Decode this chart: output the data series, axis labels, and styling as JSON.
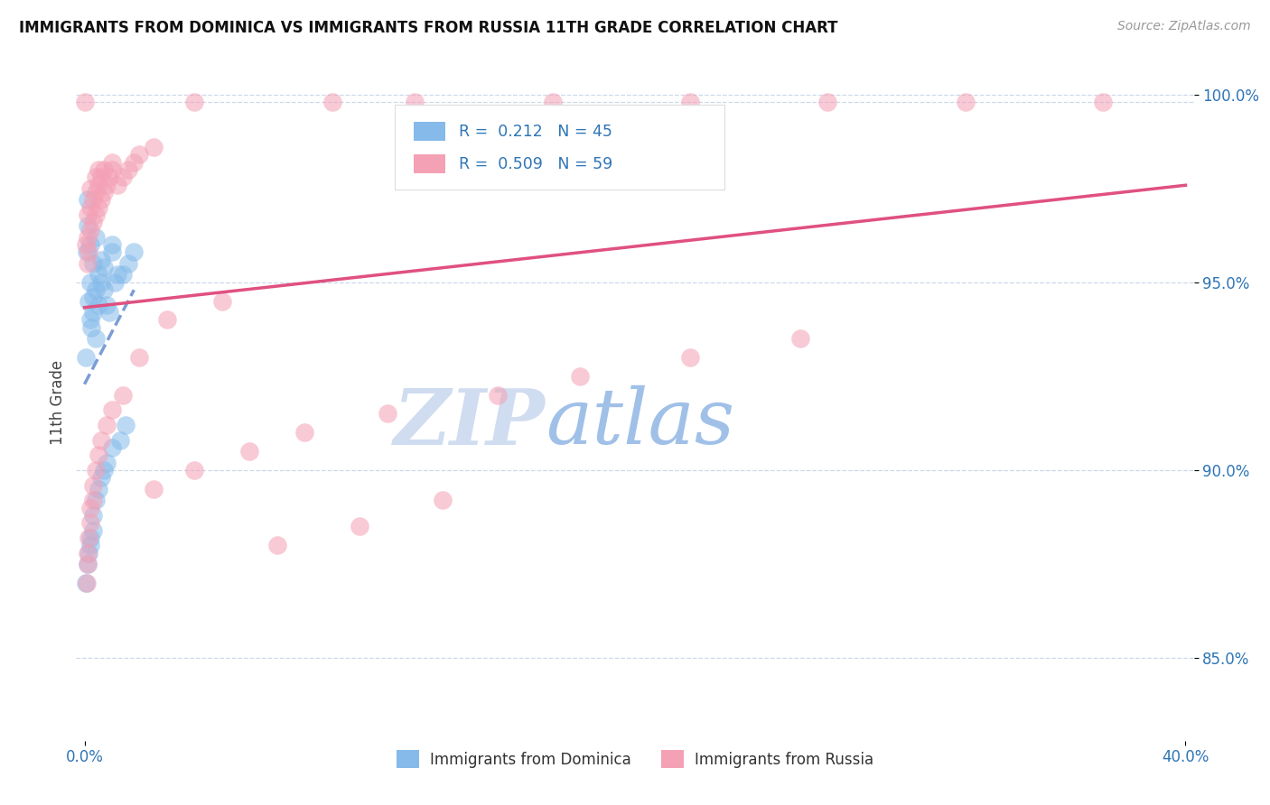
{
  "title": "IMMIGRANTS FROM DOMINICA VS IMMIGRANTS FROM RUSSIA 11TH GRADE CORRELATION CHART",
  "source": "Source: ZipAtlas.com",
  "xlabel_blue": "Immigrants from Dominica",
  "xlabel_pink": "Immigrants from Russia",
  "ylabel": "11th Grade",
  "xlim": [
    -0.003,
    0.403
  ],
  "ylim": [
    0.828,
    1.008
  ],
  "yticks": [
    0.85,
    0.9,
    0.95,
    1.0
  ],
  "ytick_labels": [
    "85.0%",
    "90.0%",
    "95.0%",
    "100.0%"
  ],
  "xtick_positions": [
    0.0,
    0.4
  ],
  "xtick_labels": [
    "0.0%",
    "40.0%"
  ],
  "r_blue": 0.212,
  "n_blue": 45,
  "r_pink": 0.509,
  "n_pink": 59,
  "color_blue": "#85BAEA",
  "color_pink": "#F4A0B5",
  "color_blue_line": "#4472C4",
  "color_pink_line": "#E05080",
  "legend_r_color": "#2E75B6",
  "watermark_zip": "ZIP",
  "watermark_atlas": "atlas",
  "watermark_color_zip": "#D0DCF0",
  "watermark_color_atlas": "#A0C0E8",
  "blue_x": [
    0.0005,
    0.001,
    0.0012,
    0.0008,
    0.0015,
    0.002,
    0.002,
    0.002,
    0.0025,
    0.003,
    0.003,
    0.003,
    0.004,
    0.004,
    0.004,
    0.005,
    0.005,
    0.006,
    0.006,
    0.007,
    0.007,
    0.008,
    0.009,
    0.01,
    0.01,
    0.011,
    0.012,
    0.014,
    0.016,
    0.018,
    0.0005,
    0.001,
    0.0015,
    0.002,
    0.002,
    0.003,
    0.003,
    0.004,
    0.005,
    0.006,
    0.007,
    0.008,
    0.01,
    0.013,
    0.015
  ],
  "blue_y": [
    0.93,
    0.972,
    0.965,
    0.958,
    0.945,
    0.94,
    0.95,
    0.96,
    0.938,
    0.942,
    0.946,
    0.955,
    0.935,
    0.948,
    0.962,
    0.944,
    0.952,
    0.95,
    0.956,
    0.948,
    0.954,
    0.944,
    0.942,
    0.96,
    0.958,
    0.95,
    0.952,
    0.952,
    0.955,
    0.958,
    0.87,
    0.875,
    0.878,
    0.88,
    0.882,
    0.884,
    0.888,
    0.892,
    0.895,
    0.898,
    0.9,
    0.902,
    0.906,
    0.908,
    0.912
  ],
  "pink_x": [
    0.0005,
    0.001,
    0.001,
    0.001,
    0.0015,
    0.002,
    0.002,
    0.002,
    0.003,
    0.003,
    0.004,
    0.004,
    0.004,
    0.005,
    0.005,
    0.005,
    0.006,
    0.006,
    0.007,
    0.007,
    0.008,
    0.009,
    0.01,
    0.01,
    0.012,
    0.014,
    0.016,
    0.018,
    0.02,
    0.025,
    0.0008,
    0.001,
    0.0012,
    0.0015,
    0.002,
    0.002,
    0.003,
    0.003,
    0.004,
    0.005,
    0.006,
    0.008,
    0.01,
    0.014,
    0.02,
    0.03,
    0.05,
    0.07,
    0.1,
    0.13,
    0.025,
    0.04,
    0.06,
    0.08,
    0.11,
    0.15,
    0.18,
    0.22,
    0.26
  ],
  "pink_y": [
    0.96,
    0.955,
    0.962,
    0.968,
    0.958,
    0.964,
    0.97,
    0.975,
    0.966,
    0.972,
    0.968,
    0.974,
    0.978,
    0.97,
    0.976,
    0.98,
    0.972,
    0.978,
    0.974,
    0.98,
    0.976,
    0.978,
    0.98,
    0.982,
    0.976,
    0.978,
    0.98,
    0.982,
    0.984,
    0.986,
    0.87,
    0.875,
    0.878,
    0.882,
    0.886,
    0.89,
    0.892,
    0.896,
    0.9,
    0.904,
    0.908,
    0.912,
    0.916,
    0.92,
    0.93,
    0.94,
    0.945,
    0.88,
    0.885,
    0.892,
    0.895,
    0.9,
    0.905,
    0.91,
    0.915,
    0.92,
    0.925,
    0.93,
    0.935
  ],
  "pink_top_x": [
    0.0,
    0.04,
    0.09,
    0.12,
    0.17,
    0.22,
    0.27,
    0.32,
    0.37
  ],
  "pink_top_y": [
    0.998,
    0.998,
    0.998,
    0.998,
    0.998,
    0.998,
    0.998,
    0.998,
    0.998
  ]
}
